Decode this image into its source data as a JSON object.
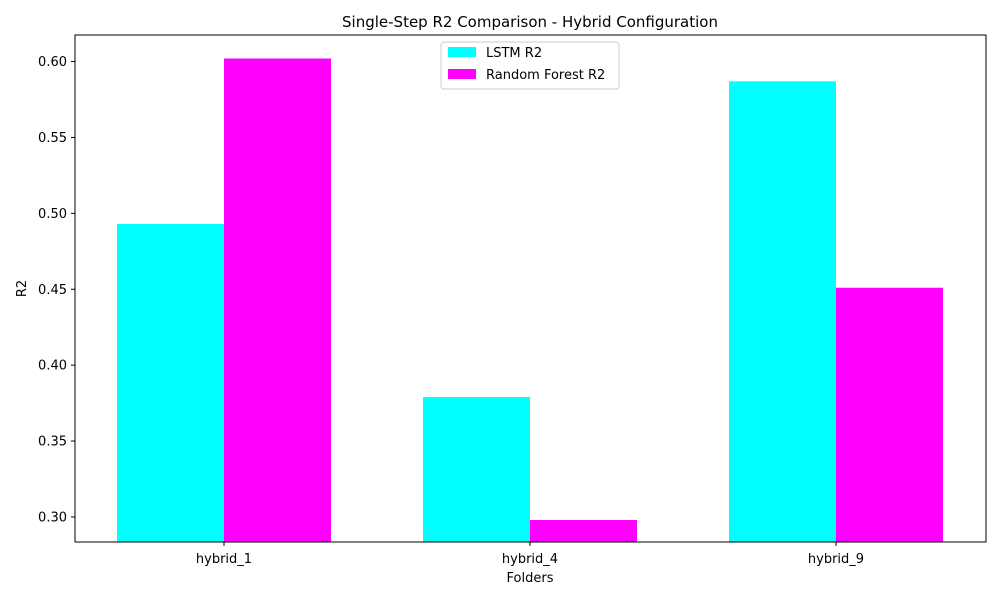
{
  "chart_data": {
    "type": "bar",
    "title": "Single-Step R2 Comparison - Hybrid Configuration",
    "xlabel": "Folders",
    "ylabel": "R2",
    "categories": [
      "hybrid_1",
      "hybrid_4",
      "hybrid_9"
    ],
    "series": [
      {
        "name": "LSTM R2",
        "values": [
          0.493,
          0.379,
          0.587
        ],
        "color": "#00ffff"
      },
      {
        "name": "Random Forest R2",
        "values": [
          0.602,
          0.298,
          0.451
        ],
        "color": "#ff00ff"
      }
    ],
    "ylim": [
      0.2835,
      0.6175
    ],
    "yticks": [
      0.3,
      0.35,
      0.4,
      0.45,
      0.5,
      0.55,
      0.6
    ],
    "ytick_labels": [
      "0.30",
      "0.35",
      "0.40",
      "0.45",
      "0.50",
      "0.55",
      "0.60"
    ],
    "legend_position": "top-center",
    "grid": false
  }
}
